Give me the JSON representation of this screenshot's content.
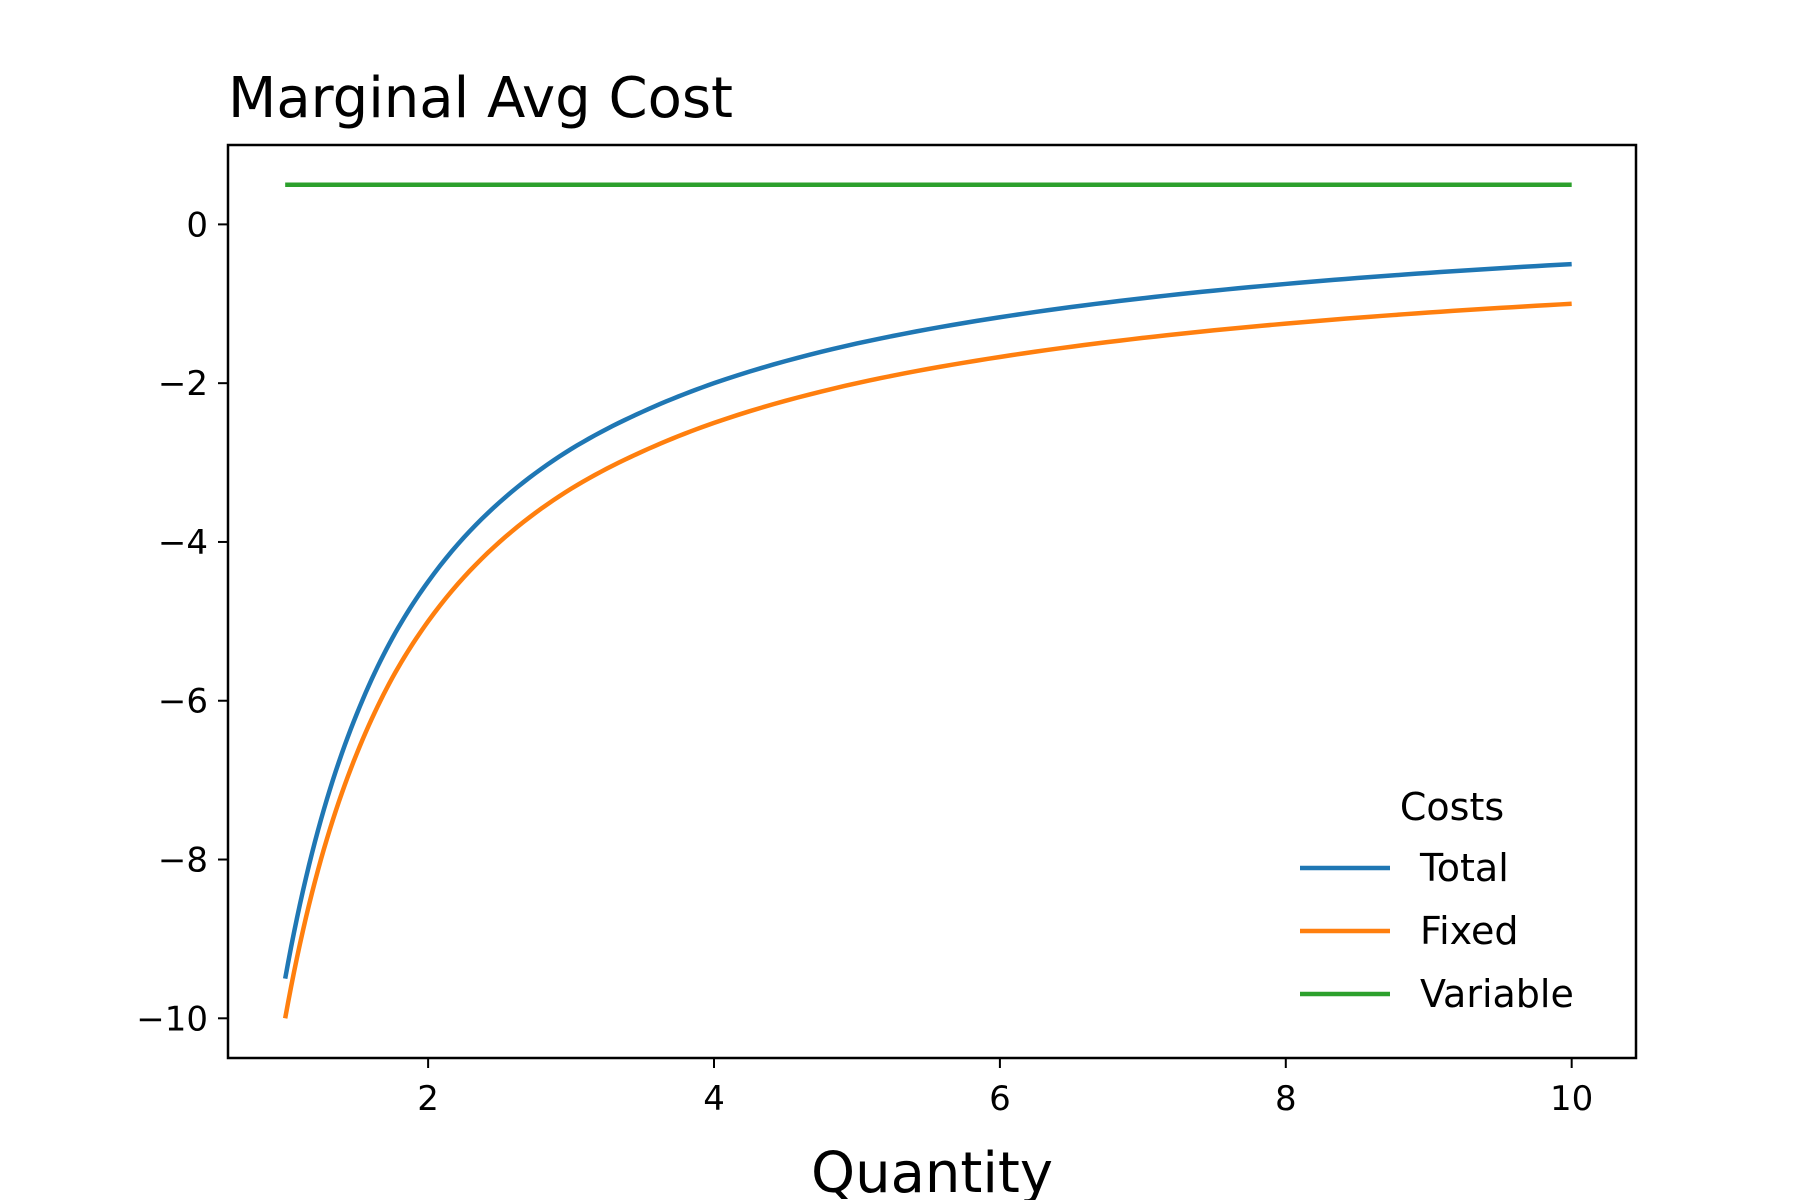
{
  "chart_data": {
    "type": "line",
    "title": "Marginal Avg Cost",
    "xlabel": "Quantity",
    "ylabel": "",
    "xlim": [
      0.6,
      10.45
    ],
    "ylim": [
      -10.5,
      1.0
    ],
    "xticks": [
      2,
      4,
      6,
      8,
      10
    ],
    "yticks": [
      0,
      -2,
      -4,
      -6,
      -8,
      -10
    ],
    "xtick_labels": [
      "2",
      "4",
      "6",
      "8",
      "10"
    ],
    "ytick_labels": [
      "0",
      "−2",
      "−4",
      "−6",
      "−8",
      "−10"
    ],
    "grid": false,
    "legend": {
      "title": "Costs",
      "position": "lower-right"
    },
    "x": [
      1.0,
      1.25,
      1.5,
      1.75,
      2.0,
      2.5,
      3.0,
      3.5,
      4.0,
      5.0,
      6.0,
      7.0,
      8.0,
      9.0,
      10.0
    ],
    "series": [
      {
        "name": "Total",
        "color": "#1f77b4",
        "values": [
          -9.5,
          -7.5,
          -6.17,
          -5.21,
          -4.5,
          -3.5,
          -2.83,
          -2.36,
          -2.0,
          -1.5,
          -1.17,
          -0.93,
          -0.75,
          -0.61,
          -0.5
        ]
      },
      {
        "name": "Fixed",
        "color": "#ff7f0e",
        "values": [
          -10.0,
          -8.0,
          -6.67,
          -5.71,
          -5.0,
          -4.0,
          -3.33,
          -2.86,
          -2.5,
          -2.0,
          -1.67,
          -1.43,
          -1.25,
          -1.11,
          -1.0
        ]
      },
      {
        "name": "Variable",
        "color": "#2ca02c",
        "values": [
          0.5,
          0.5,
          0.5,
          0.5,
          0.5,
          0.5,
          0.5,
          0.5,
          0.5,
          0.5,
          0.5,
          0.5,
          0.5,
          0.5,
          0.5
        ]
      }
    ]
  }
}
